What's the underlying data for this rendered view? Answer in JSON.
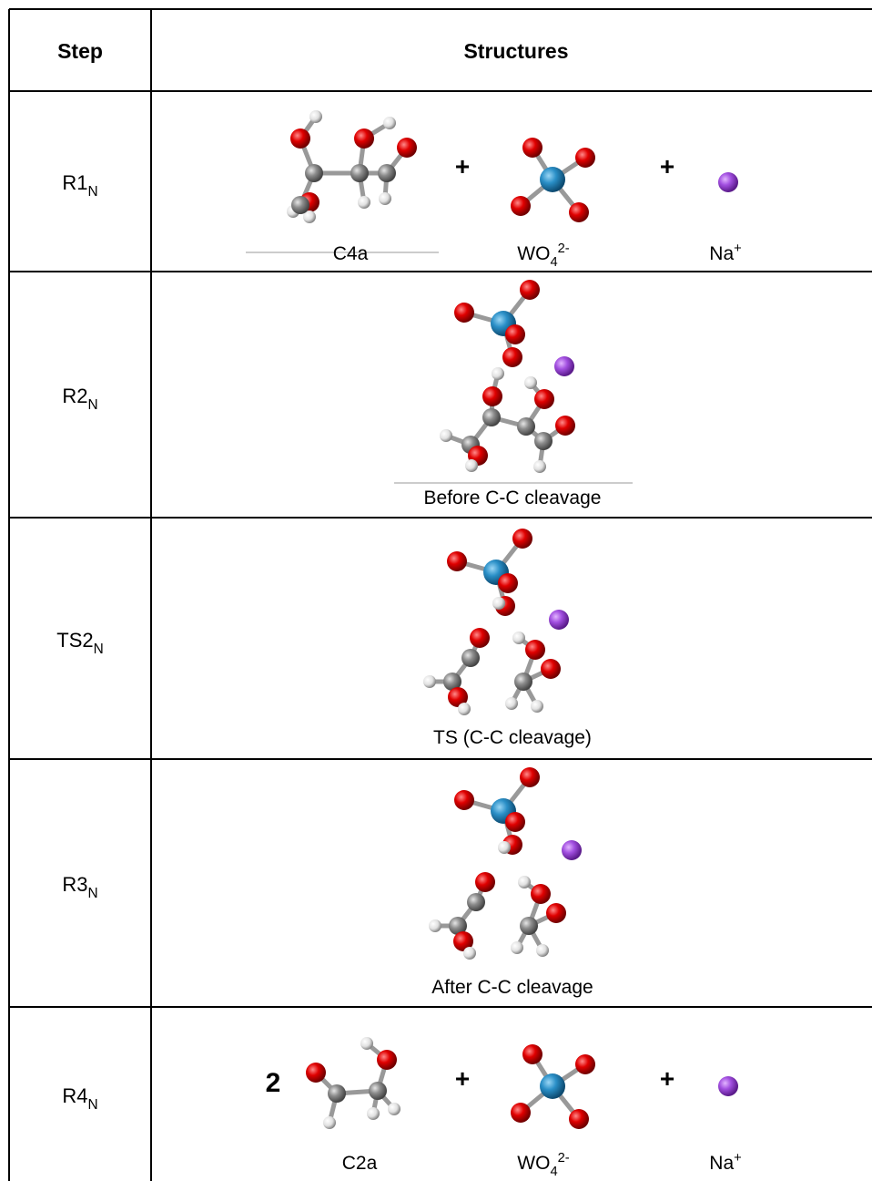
{
  "table": {
    "header": [
      "Step",
      "Structures"
    ],
    "rows": [
      {
        "step": {
          "text": "R1",
          "sub": "N"
        },
        "species": [
          {
            "name": "C4a"
          },
          {
            "name": "WO",
            "sub": "4",
            "sup": "2-"
          },
          {
            "name": "Na",
            "sup": "+"
          }
        ],
        "operators": [
          "+",
          "+"
        ]
      },
      {
        "step": {
          "text": "R2",
          "sub": "N"
        },
        "caption": "Before C-C cleavage"
      },
      {
        "step": {
          "text": "TS2",
          "sub": "N"
        },
        "caption": "TS (C-C cleavage)"
      },
      {
        "step": {
          "text": "R3",
          "sub": "N"
        },
        "caption": "After C-C cleavage"
      },
      {
        "step": {
          "text": "R4",
          "sub": "N"
        },
        "coefficient": "2",
        "species": [
          {
            "name": "C2a"
          },
          {
            "name": "WO",
            "sub": "4",
            "sup": "2-"
          },
          {
            "name": "Na",
            "sup": "+"
          }
        ],
        "operators": [
          "+",
          "+"
        ]
      }
    ]
  }
}
